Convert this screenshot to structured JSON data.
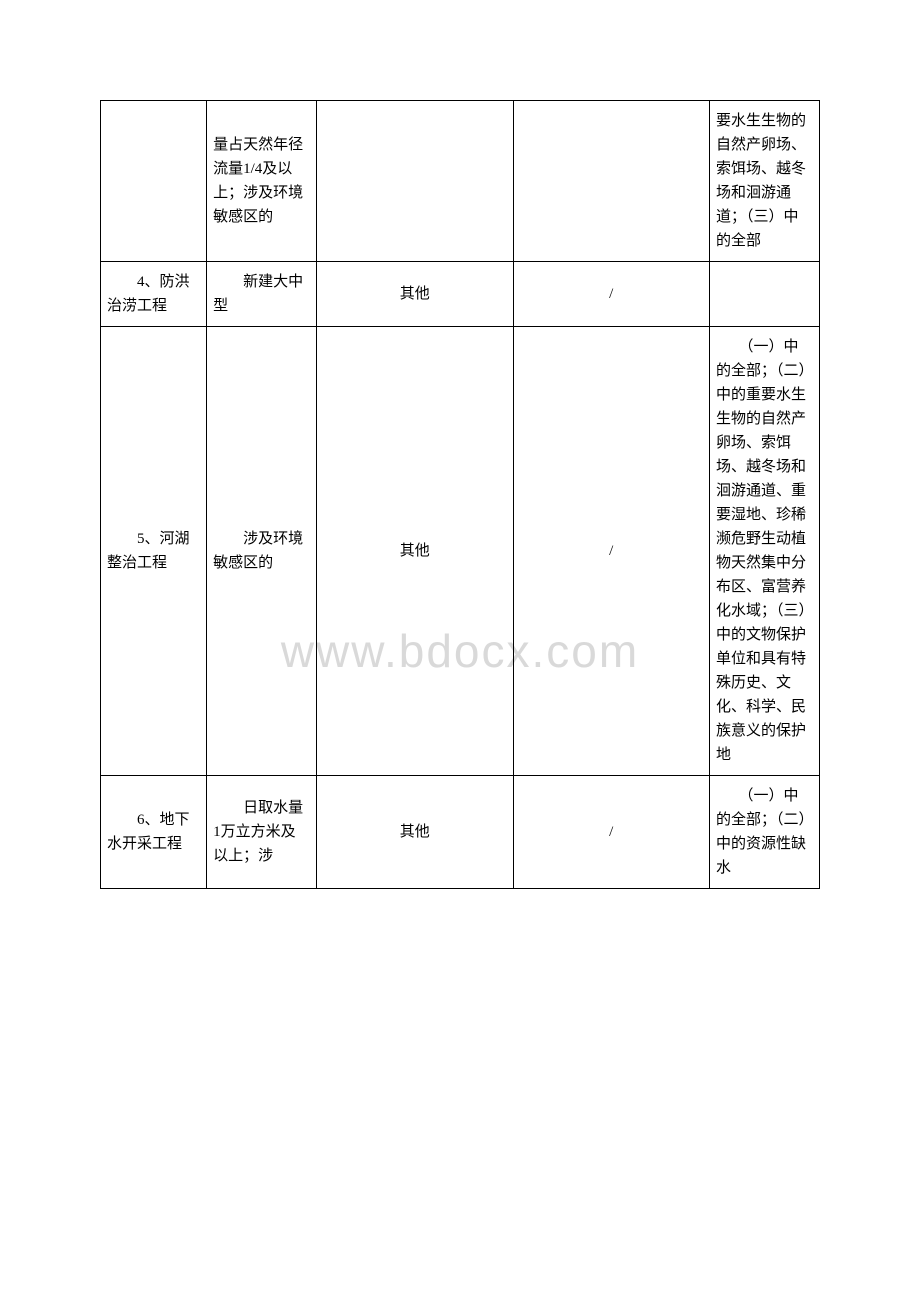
{
  "watermark": "www.bdocx.com",
  "rows": [
    {
      "col1": "",
      "col2": "量占天然年径流量1/4及以上；涉及环境敏感区的",
      "col3": "",
      "col4": "",
      "col5": "要水生生物的自然产卵场、索饵场、越冬场和洄游通道；（三）中的全部"
    },
    {
      "col1": "　　4、防洪治涝工程",
      "col2": "　　新建大中型",
      "col3": "其他",
      "col4": "/",
      "col5": ""
    },
    {
      "col1": "　　5、河湖整治工程",
      "col2": "　　涉及环境敏感区的",
      "col3": "其他",
      "col4": "/",
      "col5": "　　（一）中的全部；（二）中的重要水生生物的自然产卵场、索饵场、越冬场和洄游通道、重要湿地、珍稀濒危野生动植物天然集中分布区、富营养化水域；（三）中的文物保护单位和具有特殊历史、文化、科学、民族意义的保护地"
    },
    {
      "col1": "　　6、地下水开采工程",
      "col2": "　　日取水量1万立方米及以上；涉",
      "col3": "其他",
      "col4": "/",
      "col5": "　　（一）中的全部；（二）中的资源性缺水"
    }
  ]
}
